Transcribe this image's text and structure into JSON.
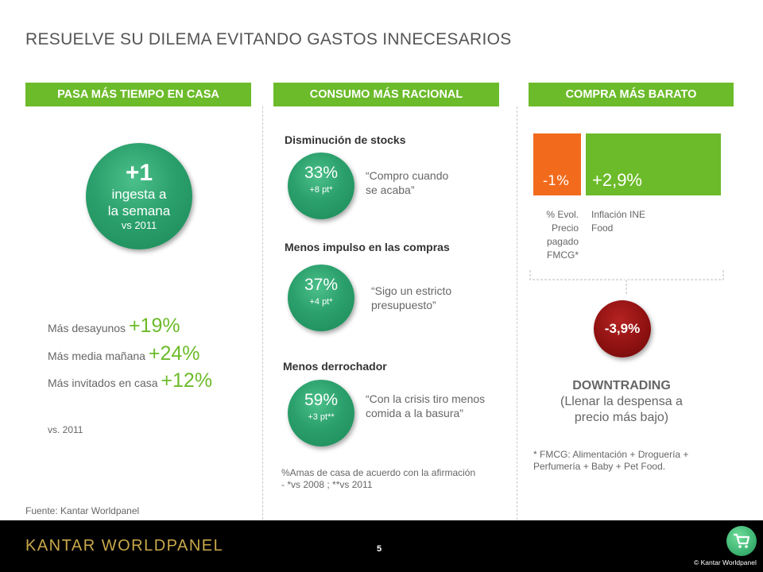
{
  "title": "RESUELVE SU DILEMA EVITANDO GASTOS INNECESARIOS",
  "col1": {
    "header": "PASA MÁS TIEMPO EN CASA",
    "circle": {
      "num": "+1",
      "line1": "ingesta a",
      "line2": "la semana",
      "sub": "vs 2011"
    },
    "stats": [
      {
        "label": "Más desayunos ",
        "value": "+19%"
      },
      {
        "label": "Más media mañana ",
        "value": "+24%"
      },
      {
        "label": "Más invitados en casa ",
        "value": "+12%"
      }
    ],
    "vs": "vs. 2011",
    "source": "Fuente: Kantar Worldpanel"
  },
  "col2": {
    "header": "CONSUMO MÁS RACIONAL",
    "items": [
      {
        "title": "Disminución de stocks",
        "pct": "33%",
        "pts": "+8 pt*",
        "quote1": "“Compro cuando",
        "quote2": "se acaba”"
      },
      {
        "title": "Menos impulso en las compras",
        "pct": "37%",
        "pts": "+4 pt*",
        "quote1": "“Sigo un estricto",
        "quote2": "presupuesto”"
      },
      {
        "title": "Menos derrochador",
        "pct": "59%",
        "pts": "+3 pt**",
        "quote1": "“Con la crisis tiro menos",
        "quote2": "comida a la basura”"
      }
    ],
    "note1": "%Amas de casa de acuerdo con la afirmación",
    "note2": "- *vs 2008 ; **vs 2011"
  },
  "col3": {
    "header": "COMPRA MÁS BARATO",
    "bar_orange": {
      "value": "-1%",
      "color": "#f26b1d"
    },
    "bar_green": {
      "value": "+2,9%",
      "color": "#6cbb2a"
    },
    "label_orange": [
      "% Evol.",
      "Precio",
      "pagado",
      "FMCG*"
    ],
    "label_green": [
      "Inflación INE",
      "Food"
    ],
    "result": "-3,9%",
    "downtrading": "DOWNTRADING",
    "dt_line1": "(Llenar la despensa a",
    "dt_line2": "precio más bajo)",
    "footnote1": "* FMCG: Alimentación + Droguería +",
    "footnote2": "Perfumería + Baby + Pet Food."
  },
  "footer": {
    "logo": "KANTAR WORLDPANEL",
    "page": "5",
    "copyright": "© Kantar Worldpanel"
  },
  "colors": {
    "accent_green": "#6cbb2a",
    "circle_green": "#2ba06c",
    "orange": "#f26b1d",
    "dark_red": "#8c1010"
  }
}
